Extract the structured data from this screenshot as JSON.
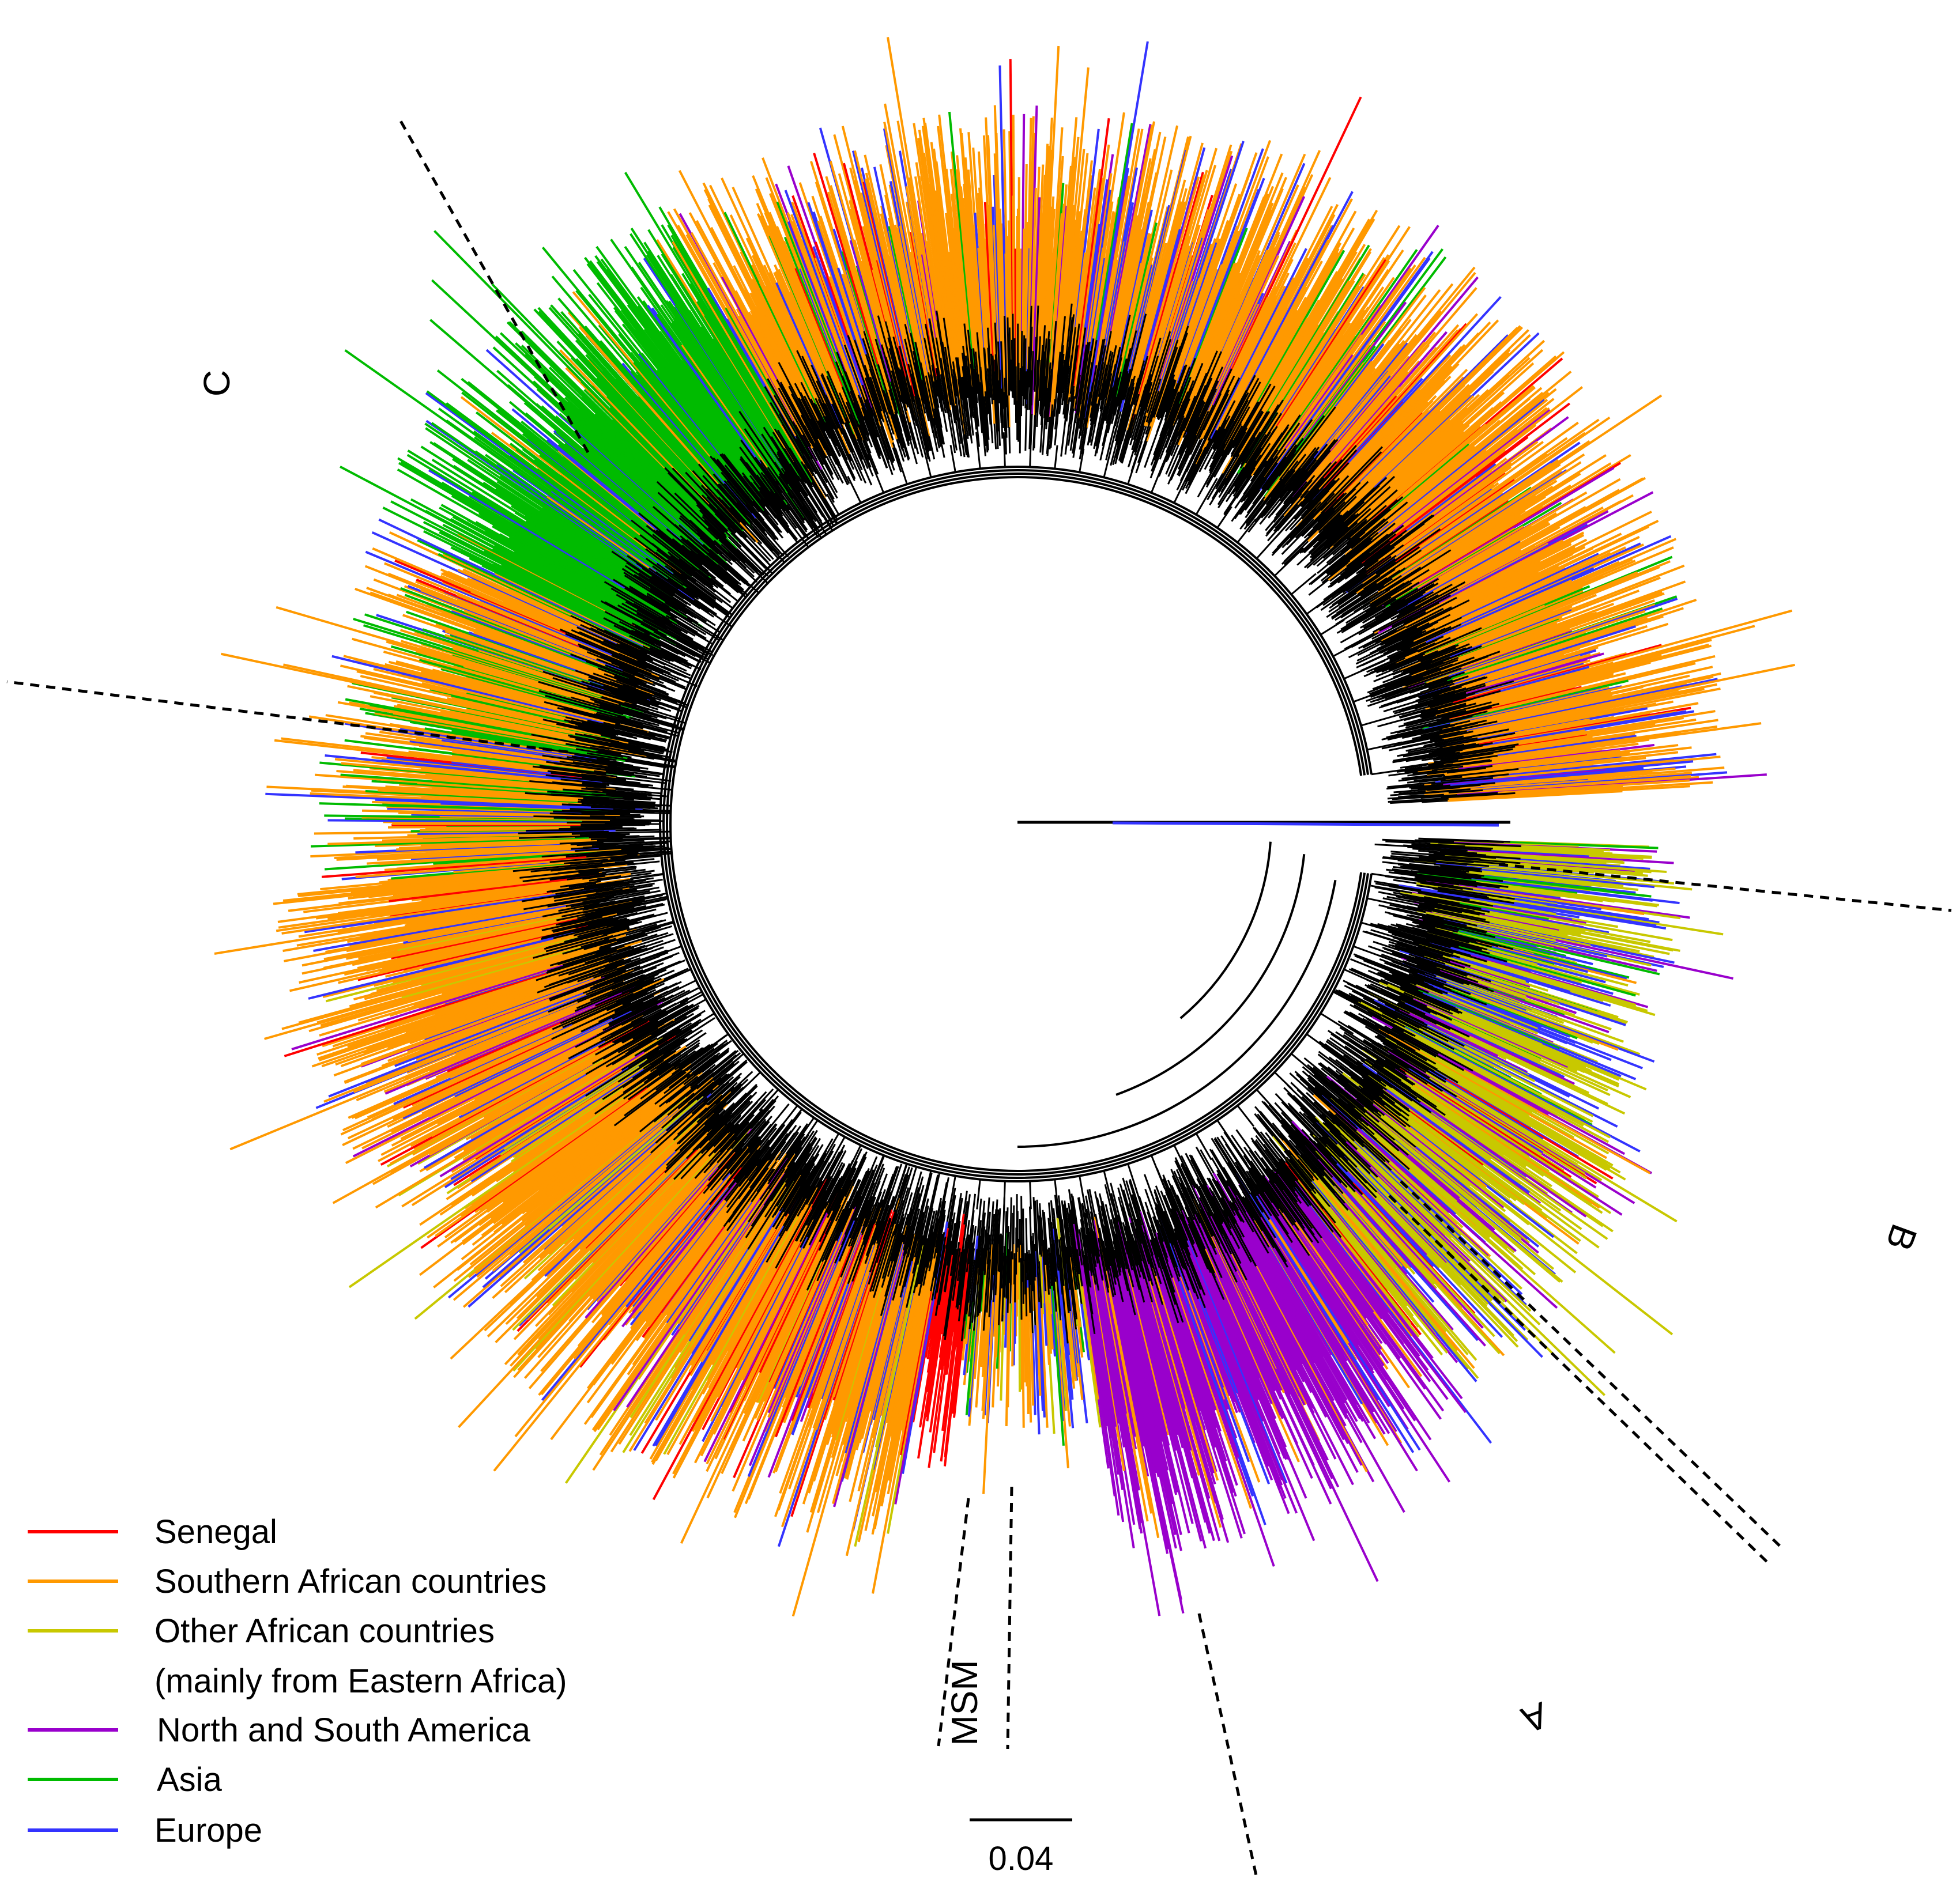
{
  "legend": {
    "items": [
      {
        "key": "senegal",
        "label": "Senegal",
        "color": "#ff0000"
      },
      {
        "key": "southern",
        "label": "Southern African countries",
        "color": "#ff9900"
      },
      {
        "key": "other",
        "label": "Other African countries",
        "label_line2": "(mainly from Eastern Africa)",
        "color": "#c8c800"
      },
      {
        "key": "america",
        "label": "North and South America",
        "color": "#9900cc"
      },
      {
        "key": "asia",
        "label": "Asia",
        "color": "#00bb00"
      },
      {
        "key": "europe",
        "label": "Europe",
        "color": "#3333ff"
      }
    ]
  },
  "clades": {
    "c": "C",
    "b": "B",
    "a": "A",
    "msm": "MSM"
  },
  "scale_bar": {
    "label": "0.04"
  },
  "colors": {
    "branch": "#000000",
    "background": "#ffffff"
  }
}
